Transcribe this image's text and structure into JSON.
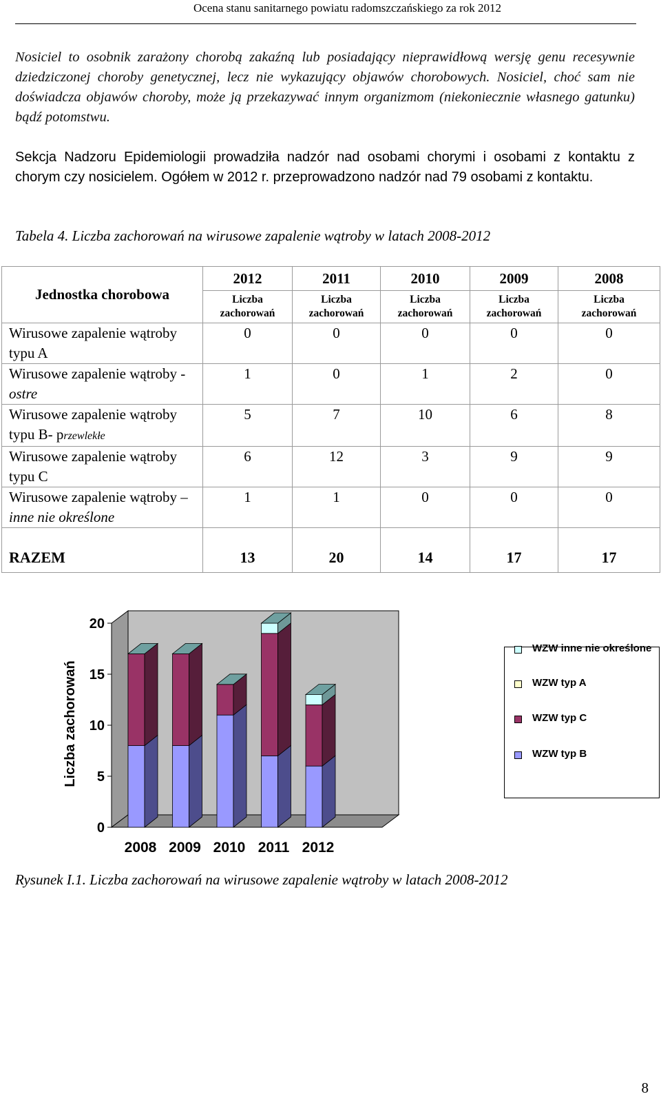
{
  "header": {
    "title": "Ocena stanu sanitarnego powiatu radomszczańskiego za rok 2012"
  },
  "paragraphs": {
    "carrier_definition": "Nosiciel  to  osobnik zarażony chorobą zakaźną lub posiadający nieprawidłową wersję genu recesywnie dziedziczonej choroby genetycznej, lecz nie wykazujący objawów chorobowych. Nosiciel, choć sam nie doświadcza objawów choroby, może ją przekazywać innym organizmom (niekoniecznie własnego gatunku) bądź potomstwu.",
    "supervision": "Sekcja Nadzoru Epidemiologii prowadziła nadzór nad osobami chorymi i osobami z kontaktu z chorym czy nosicielem. Ogółem w 2012 r. przeprowadzono nadzór nad 79 osobami z kontaktu."
  },
  "table": {
    "caption": "Tabela  4.  Liczba zachorowań na wirusowe zapalenie wątroby w latach 2008-2012",
    "name_header": "Jednostka chorobowa",
    "years": [
      "2012",
      "2011",
      "2010",
      "2009",
      "2008"
    ],
    "sub_header": [
      "Liczba",
      "zachorowań"
    ],
    "rows": [
      {
        "name_main": "Wirusowe zapalenie wątroby typu A",
        "name_suffix": "",
        "values": [
          "0",
          "0",
          "0",
          "0",
          "0"
        ]
      },
      {
        "name_main": "Wirusowe zapalenie wątroby -",
        "name_suffix": "ostre",
        "values": [
          "1",
          "0",
          "1",
          "2",
          "0"
        ]
      },
      {
        "name_main": "Wirusowe zapalenie wątroby typu B- p",
        "name_suffix": "rzewlekłe",
        "values": [
          "5",
          "7",
          "10",
          "6",
          "8"
        ]
      },
      {
        "name_main": "Wirusowe zapalenie wątroby typu C",
        "name_suffix": "",
        "values": [
          "6",
          "12",
          "3",
          "9",
          "9"
        ]
      },
      {
        "name_main": "Wirusowe zapalenie wątroby – ",
        "name_suffix": "inne nie określone",
        "values": [
          "1",
          "1",
          "0",
          "0",
          "0"
        ]
      }
    ],
    "total": {
      "label": "RAZEM",
      "values": [
        "13",
        "20",
        "14",
        "17",
        "17"
      ]
    }
  },
  "chart_data": {
    "type": "bar",
    "stacked": true,
    "three_d": true,
    "categories": [
      "2008",
      "2009",
      "2010",
      "2011",
      "2012"
    ],
    "series": [
      {
        "name": "WZW typ B",
        "values": [
          8,
          8,
          11,
          7,
          6
        ],
        "color": "#9999ff",
        "side": "#4d4d8c"
      },
      {
        "name": "WZW typ C",
        "values": [
          9,
          9,
          3,
          12,
          6
        ],
        "color": "#993366",
        "side": "#561e3a"
      },
      {
        "name": "WZW typ A",
        "values": [
          0,
          0,
          0,
          0,
          0
        ],
        "color": "#ffffcc",
        "side": "#9a9a7a"
      },
      {
        "name": "WZW inne nie określone",
        "values": [
          0,
          0,
          0,
          1,
          1
        ],
        "color": "#ccffff",
        "side": "#6e9898"
      }
    ],
    "legend_order": [
      "WZW inne nie określone",
      "WZW typ A",
      "WZW typ C",
      "WZW typ B"
    ],
    "ylabel": "Liczba zachorowań",
    "xlabel": "",
    "ylim": [
      0,
      20
    ],
    "yticks": [
      "0",
      "5",
      "10",
      "15",
      "20"
    ],
    "legend_position": "right",
    "grid": false,
    "background": "#c0c0c0"
  },
  "figure": {
    "caption": "Rysunek I.1. Liczba zachorowań na wirusowe zapalenie wątroby w latach 2008-2012"
  },
  "page_number": "8"
}
